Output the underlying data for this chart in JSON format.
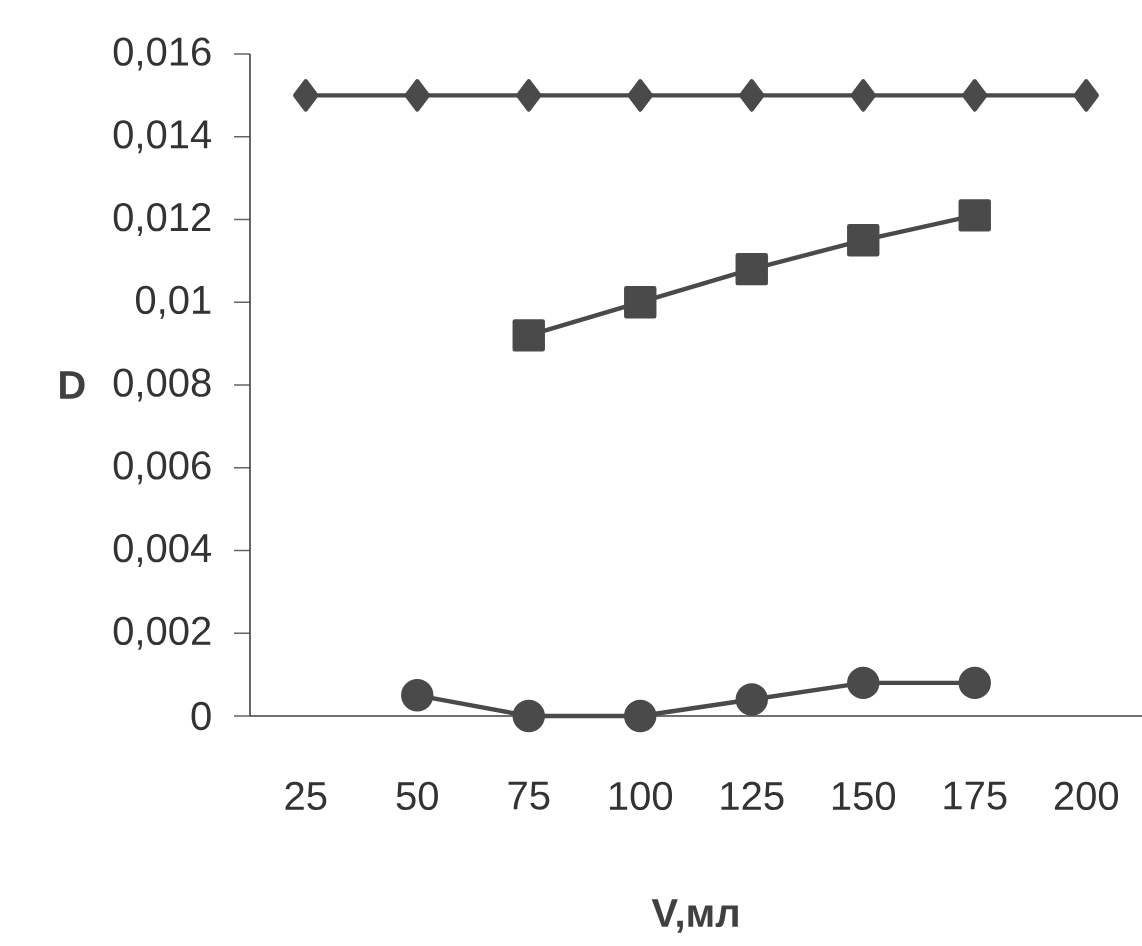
{
  "chart_data": {
    "type": "line",
    "xlabel": "V,мл",
    "ylabel": "D",
    "categories": [
      "25",
      "50",
      "75",
      "100",
      "125",
      "150",
      "175",
      "200"
    ],
    "series": [
      {
        "color": "#4a4a4a",
        "marker": "diamond",
        "values": [
          0.015,
          0.015,
          0.015,
          0.015,
          0.015,
          0.015,
          0.015,
          0.015
        ]
      },
      {
        "color": "#4a4a4a",
        "marker": "square",
        "values": [
          null,
          null,
          0.0092,
          0.01,
          0.0108,
          0.0115,
          0.0121,
          null
        ]
      },
      {
        "color": "#4a4a4a",
        "marker": "circle",
        "values": [
          null,
          0.0005,
          0,
          0,
          0.0004,
          0.0008,
          0.0008,
          null
        ]
      }
    ],
    "ylim": [
      0,
      0.016
    ],
    "yticks": [
      0,
      {
        "value": 0.002,
        "label": "0,002"
      },
      {
        "value": 0.004,
        "label": "0,004"
      },
      {
        "value": 0.006,
        "label": "0,006"
      },
      {
        "value": 0.008,
        "label": "0,008"
      },
      {
        "value": 0.01,
        "label": "0,01"
      },
      {
        "value": 0.012,
        "label": "0,012"
      },
      {
        "value": 0.014,
        "label": "0,014"
      },
      {
        "value": 0.016,
        "label": "0,016"
      }
    ],
    "tick_labels": "xy"
  }
}
